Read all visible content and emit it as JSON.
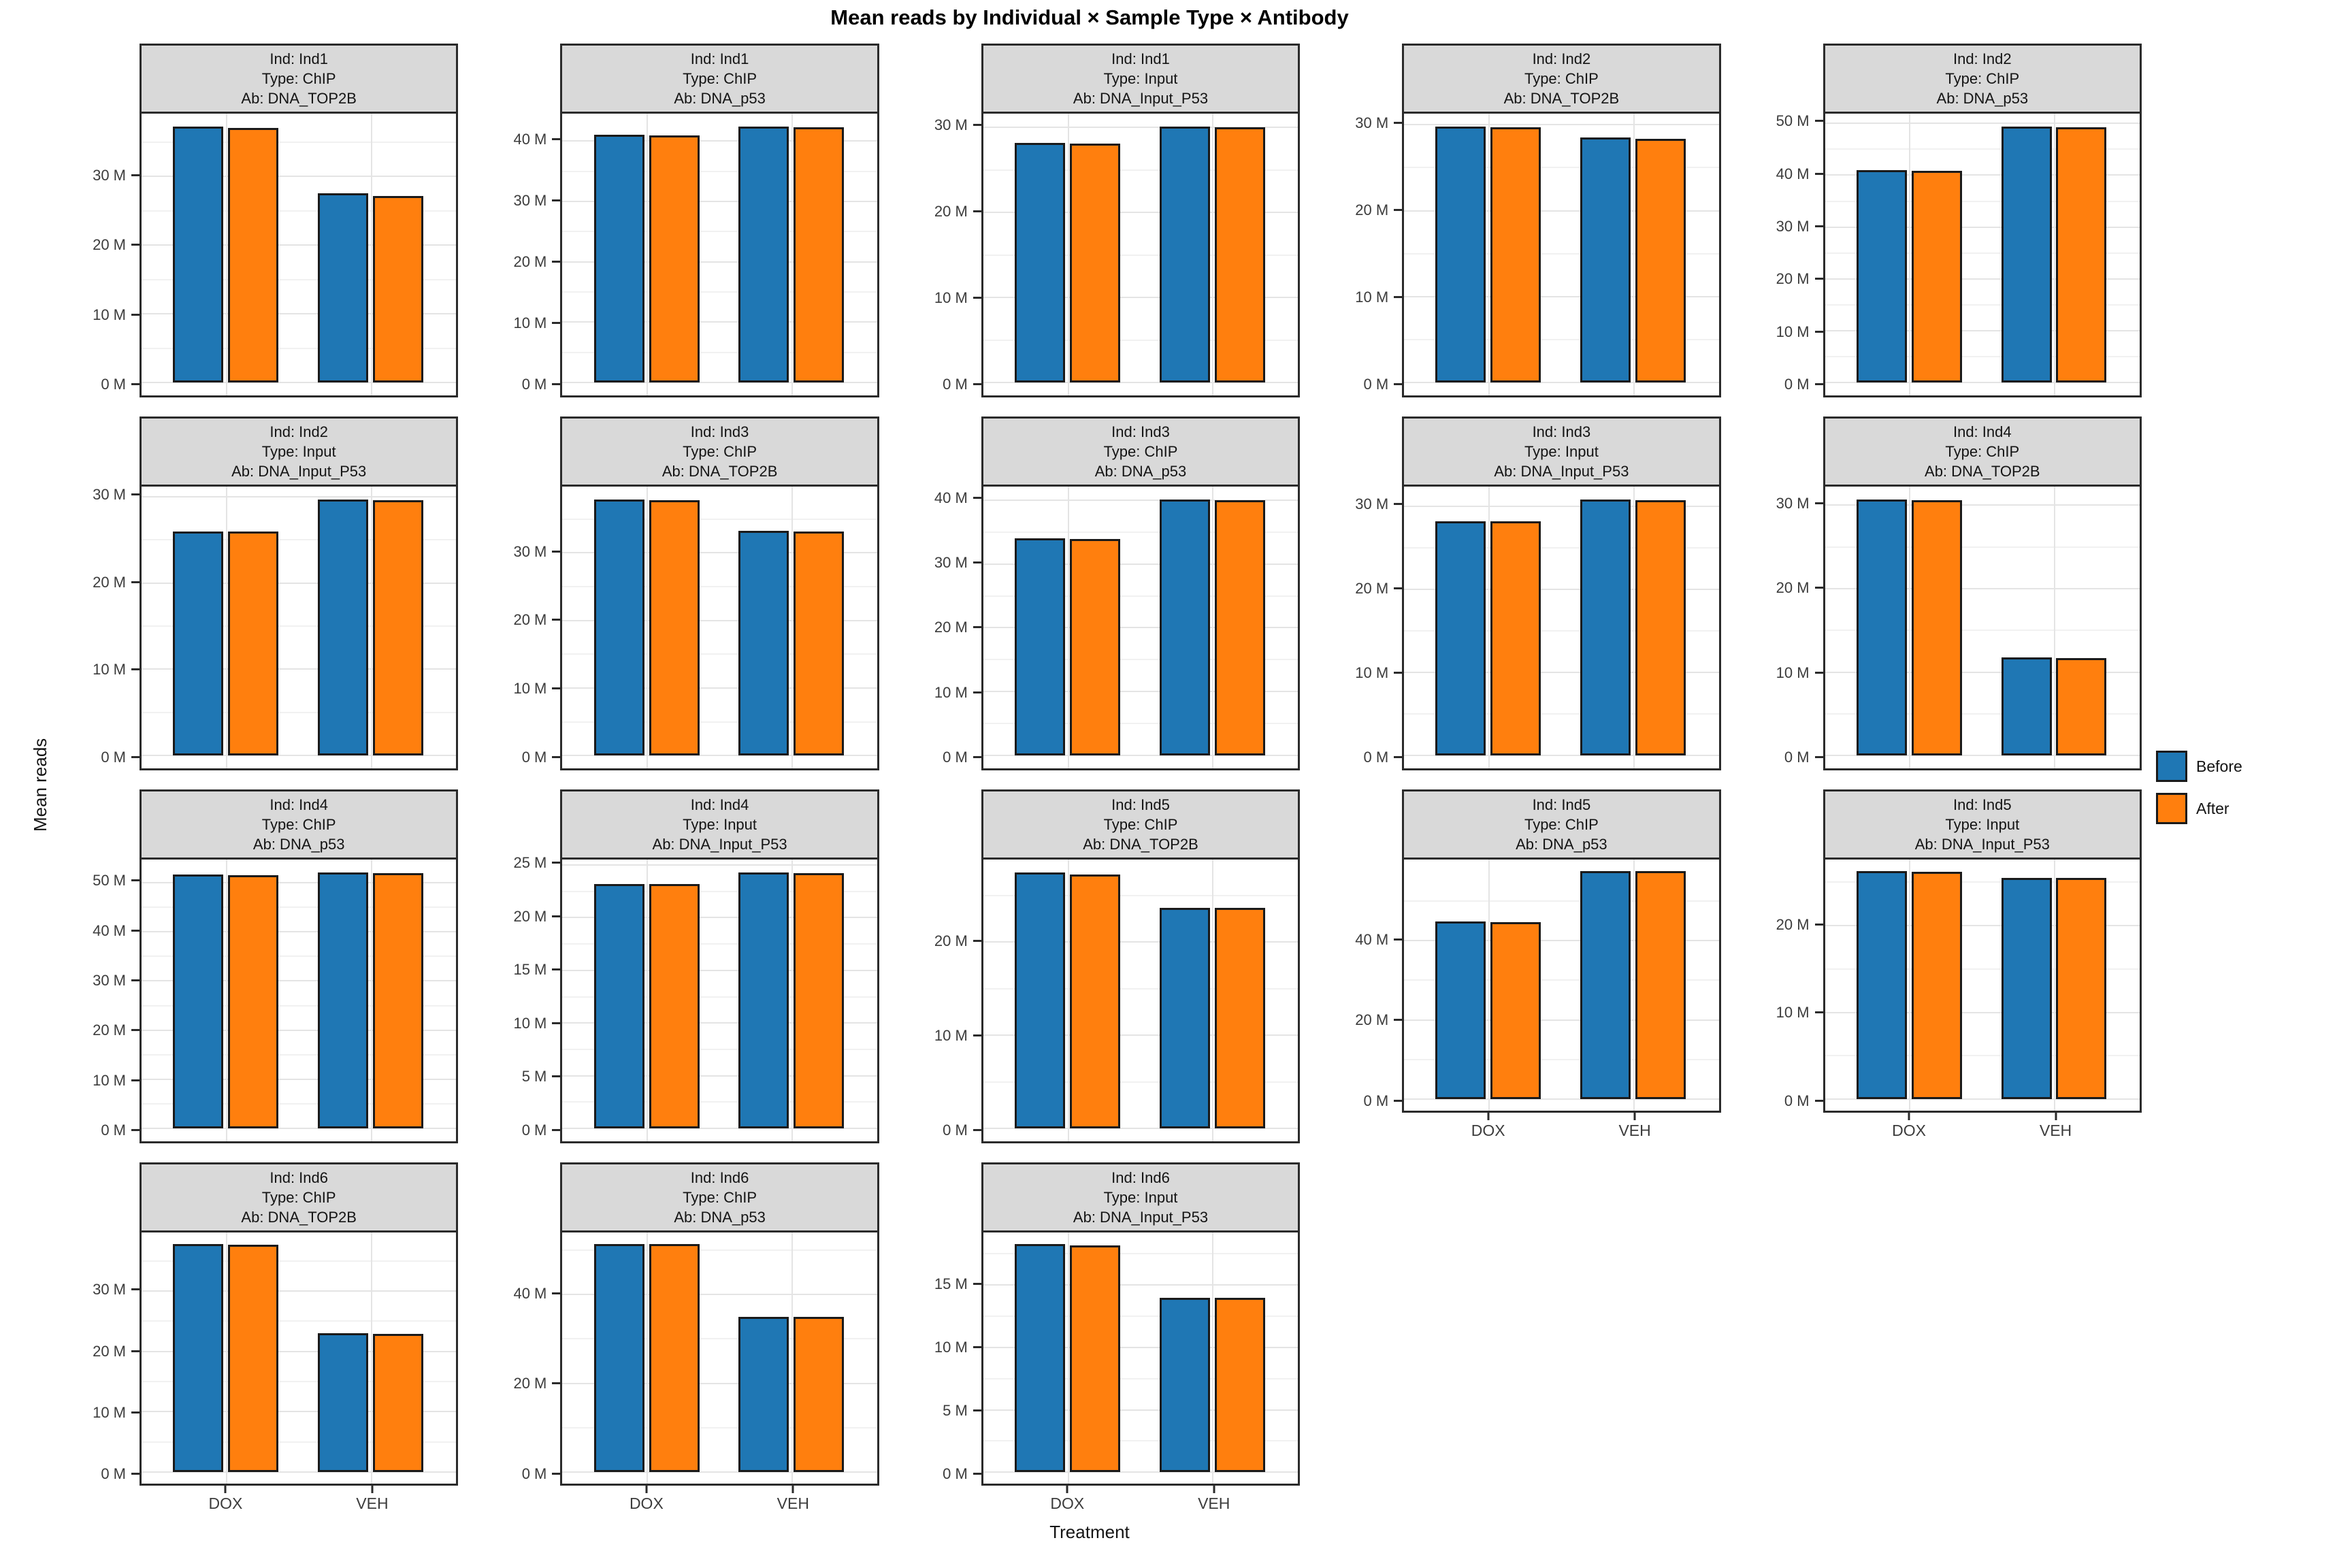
{
  "title": "Mean reads by Individual × Sample Type × Antibody",
  "ylabel": "Mean reads",
  "xlabel": "Treatment",
  "tick_suffix": " M",
  "colors": {
    "before": "#1F77B4",
    "after": "#FF7F0E",
    "strip_bg": "#D9D9D9",
    "panel_border": "#2B2B2B",
    "bar_stroke": "#1A1A1A"
  },
  "legend": {
    "items": [
      {
        "label": "Before",
        "color": "#1F77B4"
      },
      {
        "label": "After",
        "color": "#FF7F0E"
      }
    ]
  },
  "chart_data": {
    "type": "bar",
    "categories": [
      "DOX",
      "VEH"
    ],
    "series_names": [
      "Before",
      "After"
    ],
    "value_unit": "millions of reads",
    "grid": {
      "rows": 4,
      "cols": 5,
      "free_y": true
    },
    "legend_position": "right",
    "facets": [
      {
        "strip_lines": [
          "Ind: Ind1",
          "Type: ChIP",
          "Ab: DNA_TOP2B"
        ],
        "yticks": [
          0,
          10,
          20,
          30
        ],
        "before": [
          37.3,
          27.6
        ],
        "after": [
          37.1,
          27.2
        ],
        "show_x_axis": false
      },
      {
        "strip_lines": [
          "Ind: Ind1",
          "Type: ChIP",
          "Ab: DNA_p53"
        ],
        "yticks": [
          0,
          10,
          20,
          30,
          40
        ],
        "before": [
          41.0,
          42.4
        ],
        "after": [
          40.9,
          42.3
        ],
        "show_x_axis": false
      },
      {
        "strip_lines": [
          "Ind: Ind1",
          "Type: Input",
          "Ab: DNA_Input_P53"
        ],
        "yticks": [
          0,
          10,
          20,
          30
        ],
        "before": [
          28.2,
          30.1
        ],
        "after": [
          28.1,
          30.0
        ],
        "show_x_axis": false
      },
      {
        "strip_lines": [
          "Ind: Ind2",
          "Type: ChIP",
          "Ab: DNA_TOP2B"
        ],
        "yticks": [
          0,
          10,
          20,
          30
        ],
        "before": [
          29.8,
          28.5
        ],
        "after": [
          29.7,
          28.4
        ],
        "show_x_axis": false
      },
      {
        "strip_lines": [
          "Ind: Ind2",
          "Type: ChIP",
          "Ab: DNA_p53"
        ],
        "yticks": [
          0,
          10,
          20,
          30,
          40,
          50
        ],
        "before": [
          41.0,
          49.4
        ],
        "after": [
          40.9,
          49.3
        ],
        "show_x_axis": false
      },
      {
        "strip_lines": [
          "Ind: Ind2",
          "Type: Input",
          "Ab: DNA_Input_P53"
        ],
        "yticks": [
          0,
          10,
          20,
          30
        ],
        "before": [
          26.0,
          29.7
        ],
        "after": [
          26.0,
          29.6
        ],
        "show_x_axis": false
      },
      {
        "strip_lines": [
          "Ind: Ind3",
          "Type: ChIP",
          "Ab: DNA_TOP2B"
        ],
        "yticks": [
          0,
          10,
          20,
          30
        ],
        "before": [
          37.9,
          33.3
        ],
        "after": [
          37.8,
          33.2
        ],
        "show_x_axis": false
      },
      {
        "strip_lines": [
          "Ind: Ind3",
          "Type: ChIP",
          "Ab: DNA_p53"
        ],
        "yticks": [
          0,
          10,
          20,
          30,
          40
        ],
        "before": [
          34.0,
          40.1
        ],
        "after": [
          33.9,
          40.0
        ],
        "show_x_axis": false
      },
      {
        "strip_lines": [
          "Ind: Ind3",
          "Type: Input",
          "Ab: DNA_Input_P53"
        ],
        "yticks": [
          0,
          10,
          20,
          30
        ],
        "before": [
          28.2,
          30.8
        ],
        "after": [
          28.2,
          30.7
        ],
        "show_x_axis": false
      },
      {
        "strip_lines": [
          "Ind: Ind4",
          "Type: ChIP",
          "Ab: DNA_TOP2B"
        ],
        "yticks": [
          0,
          10,
          20,
          30
        ],
        "before": [
          30.7,
          11.8
        ],
        "after": [
          30.6,
          11.7
        ],
        "show_x_axis": false
      },
      {
        "strip_lines": [
          "Ind: Ind4",
          "Type: ChIP",
          "Ab: DNA_p53"
        ],
        "yticks": [
          0,
          10,
          20,
          30,
          40,
          50
        ],
        "before": [
          51.6,
          52.1
        ],
        "after": [
          51.5,
          52.0
        ],
        "show_x_axis": false
      },
      {
        "strip_lines": [
          "Ind: Ind4",
          "Type: Input",
          "Ab: DNA_Input_P53"
        ],
        "yticks": [
          0,
          5,
          10,
          15,
          20,
          25
        ],
        "before": [
          23.2,
          24.3
        ],
        "after": [
          23.2,
          24.2
        ],
        "show_x_axis": false
      },
      {
        "strip_lines": [
          "Ind: Ind5",
          "Type: ChIP",
          "Ab: DNA_TOP2B"
        ],
        "yticks": [
          0,
          10,
          20
        ],
        "before": [
          27.5,
          23.7
        ],
        "after": [
          27.3,
          23.7
        ],
        "show_x_axis": false
      },
      {
        "strip_lines": [
          "Ind: Ind5",
          "Type: ChIP",
          "Ab: DNA_p53"
        ],
        "yticks": [
          0,
          20,
          40
        ],
        "before": [
          44.7,
          57.5
        ],
        "after": [
          44.6,
          57.4
        ],
        "show_x_axis": true
      },
      {
        "strip_lines": [
          "Ind: Ind5",
          "Type: Input",
          "Ab: DNA_Input_P53"
        ],
        "yticks": [
          0,
          10,
          20
        ],
        "before": [
          26.3,
          25.5
        ],
        "after": [
          26.2,
          25.5
        ],
        "show_x_axis": true
      },
      {
        "strip_lines": [
          "Ind: Ind6",
          "Type: ChIP",
          "Ab: DNA_TOP2B"
        ],
        "yticks": [
          0,
          10,
          20,
          30
        ],
        "before": [
          37.8,
          23.0
        ],
        "after": [
          37.7,
          22.9
        ],
        "show_x_axis": true
      },
      {
        "strip_lines": [
          "Ind: Ind6",
          "Type: ChIP",
          "Ab: DNA_p53"
        ],
        "yticks": [
          0,
          20,
          40
        ],
        "before": [
          51.4,
          35.0
        ],
        "after": [
          51.3,
          34.9
        ],
        "show_x_axis": true
      },
      {
        "strip_lines": [
          "Ind: Ind6",
          "Type: Input",
          "Ab: DNA_Input_P53"
        ],
        "yticks": [
          0,
          5,
          10,
          15
        ],
        "before": [
          18.3,
          14.0
        ],
        "after": [
          18.2,
          14.0
        ],
        "show_x_axis": true
      }
    ]
  }
}
